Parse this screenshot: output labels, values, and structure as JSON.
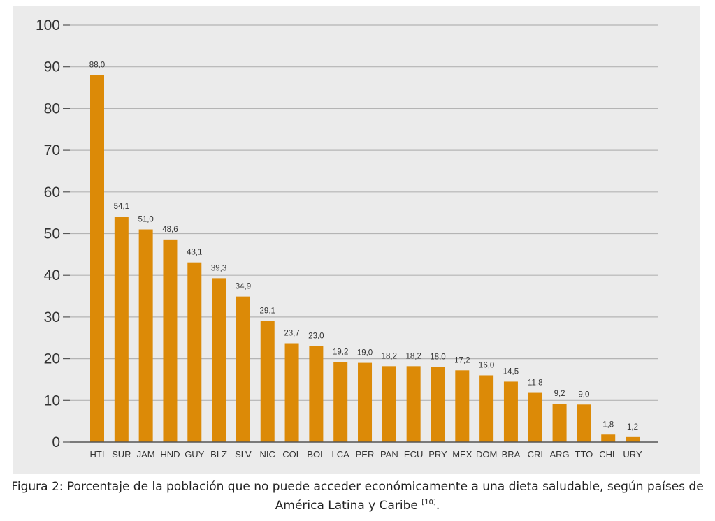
{
  "colors": {
    "bar": "#dc8a07",
    "grid": "#b4b4b4",
    "axis": "#555555",
    "panel_background": "#ebebeb"
  },
  "chart_data": {
    "type": "bar",
    "categories": [
      "HTI",
      "SUR",
      "JAM",
      "HND",
      "GUY",
      "BLZ",
      "SLV",
      "NIC",
      "COL",
      "BOL",
      "LCA",
      "PER",
      "PAN",
      "ECU",
      "PRY",
      "MEX",
      "DOM",
      "BRA",
      "CRI",
      "ARG",
      "TTO",
      "CHL",
      "URY"
    ],
    "values": [
      88.0,
      54.1,
      51.0,
      48.6,
      43.1,
      39.3,
      34.9,
      29.1,
      23.7,
      23.0,
      19.2,
      19.0,
      18.2,
      18.2,
      18.0,
      17.2,
      16.0,
      14.5,
      11.8,
      9.2,
      9.0,
      1.8,
      1.2
    ],
    "value_labels": [
      "88,0",
      "54,1",
      "51,0",
      "48,6",
      "43,1",
      "39,3",
      "34,9",
      "29,1",
      "23,7",
      "23,0",
      "19,2",
      "19,0",
      "18,2",
      "18,2",
      "18,0",
      "17,2",
      "16,0",
      "14,5",
      "11,8",
      "9,2",
      "9,0",
      "1,8",
      "1,2"
    ],
    "yticks": [
      "0",
      "10",
      "20",
      "30",
      "40",
      "50",
      "60",
      "70",
      "80",
      "90",
      "100"
    ],
    "ylim": [
      0,
      100
    ],
    "grid": true,
    "legend": "none"
  },
  "caption": {
    "line1": "Figura 2: Porcentaje de la población que no puede acceder económicamente a una dieta saludable, según países de",
    "line2": "América Latina y Caribe ",
    "ref": "[10]",
    "end": "."
  }
}
